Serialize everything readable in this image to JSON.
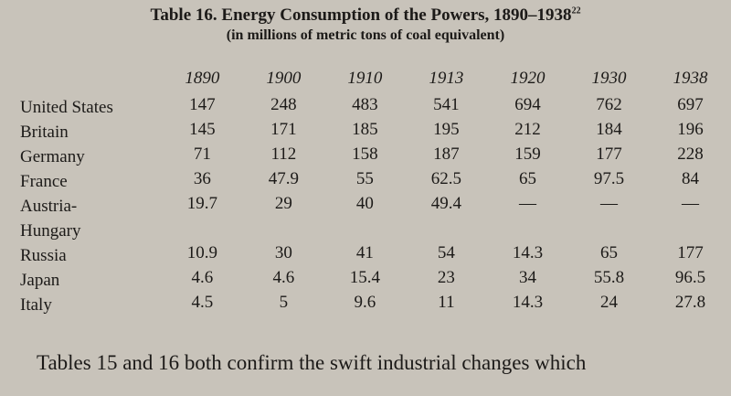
{
  "header": {
    "title": "Table 16. Energy Consumption of the Powers, 1890–1938",
    "note_mark": "22",
    "subtitle": "(in millions of metric tons of coal equivalent)"
  },
  "table": {
    "columns": [
      "1890",
      "1900",
      "1910",
      "1913",
      "1920",
      "1930",
      "1938"
    ],
    "rows": [
      {
        "label": "United States",
        "values": [
          "147",
          "248",
          "483",
          "541",
          "694",
          "762",
          "697"
        ]
      },
      {
        "label": "Britain",
        "values": [
          "145",
          "171",
          "185",
          "195",
          "212",
          "184",
          "196"
        ]
      },
      {
        "label": "Germany",
        "values": [
          "71",
          "112",
          "158",
          "187",
          "159",
          "177",
          "228"
        ]
      },
      {
        "label": "France",
        "values": [
          "36",
          "47.9",
          "55",
          "62.5",
          "65",
          "97.5",
          "84"
        ]
      },
      {
        "label": "Austria-\nHungary",
        "values": [
          "19.7",
          "29",
          "40",
          "49.4",
          "—",
          "—",
          "—"
        ]
      },
      {
        "label": "Russia",
        "values": [
          "10.9",
          "30",
          "41",
          "54",
          "14.3",
          "65",
          "177"
        ]
      },
      {
        "label": "Japan",
        "values": [
          "4.6",
          "4.6",
          "15.4",
          "23",
          "34",
          "55.8",
          "96.5"
        ]
      },
      {
        "label": "Italy",
        "values": [
          "4.5",
          "5",
          "9.6",
          "11",
          "14.3",
          "24",
          "27.8"
        ]
      }
    ]
  },
  "body_text": "Tables 15 and 16 both confirm the swift industrial changes which"
}
